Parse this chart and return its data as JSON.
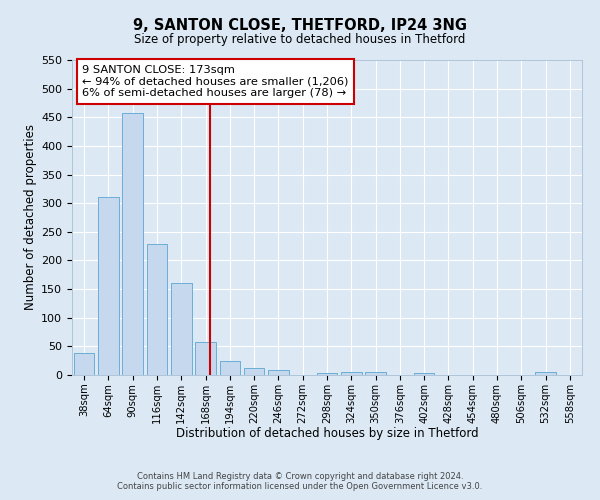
{
  "title": "9, SANTON CLOSE, THETFORD, IP24 3NG",
  "subtitle": "Size of property relative to detached houses in Thetford",
  "xlabel": "Distribution of detached houses by size in Thetford",
  "ylabel": "Number of detached properties",
  "bin_labels": [
    "38sqm",
    "64sqm",
    "90sqm",
    "116sqm",
    "142sqm",
    "168sqm",
    "194sqm",
    "220sqm",
    "246sqm",
    "272sqm",
    "298sqm",
    "324sqm",
    "350sqm",
    "376sqm",
    "402sqm",
    "428sqm",
    "454sqm",
    "480sqm",
    "506sqm",
    "532sqm",
    "558sqm"
  ],
  "bar_values": [
    38,
    310,
    457,
    228,
    160,
    57,
    25,
    12,
    8,
    0,
    4,
    5,
    5,
    0,
    4,
    0,
    0,
    0,
    0,
    5,
    0
  ],
  "bar_color": "#c5d8ed",
  "bar_edge_color": "#6aaed6",
  "background_color": "#dce9f5",
  "grid_color": "#ffffff",
  "ylim": [
    0,
    550
  ],
  "yticks": [
    0,
    50,
    100,
    150,
    200,
    250,
    300,
    350,
    400,
    450,
    500,
    550
  ],
  "vline_color": "#cc0000",
  "annotation_title": "9 SANTON CLOSE: 173sqm",
  "annotation_line1": "← 94% of detached houses are smaller (1,206)",
  "annotation_line2": "6% of semi-detached houses are larger (78) →",
  "annotation_box_color": "#ffffff",
  "annotation_box_edge": "#cc0000",
  "footer_line1": "Contains HM Land Registry data © Crown copyright and database right 2024.",
  "footer_line2": "Contains public sector information licensed under the Open Government Licence v3.0."
}
